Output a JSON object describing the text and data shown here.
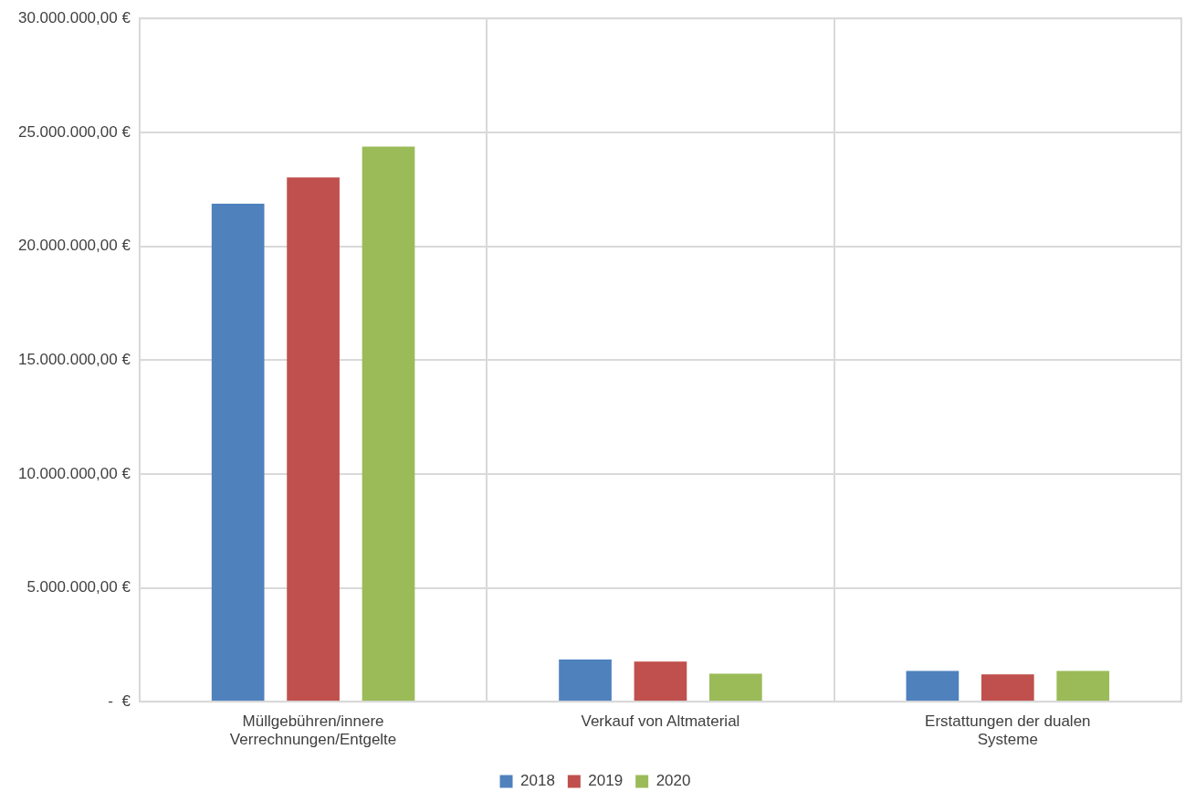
{
  "chart_data": {
    "type": "bar",
    "categories": [
      "Müllgebühren/innere Verrechnungen/Entgelte",
      "Verkauf von Altmaterial",
      "Erstattungen der dualen Systeme"
    ],
    "series": [
      {
        "name": "2018",
        "color": "#4f81bd",
        "values": [
          21870000,
          1850000,
          1350000
        ]
      },
      {
        "name": "2019",
        "color": "#c0504d",
        "values": [
          23020000,
          1760000,
          1200000
        ]
      },
      {
        "name": "2020",
        "color": "#9bbb59",
        "values": [
          24370000,
          1230000,
          1350000
        ]
      }
    ],
    "ylim": [
      0,
      30000000
    ],
    "yticks": [
      {
        "value": 0,
        "label": "-  €"
      },
      {
        "value": 5000000,
        "label": "5.000.000,00 €"
      },
      {
        "value": 10000000,
        "label": "10.000.000,00 €"
      },
      {
        "value": 15000000,
        "label": "15.000.000,00 €"
      },
      {
        "value": 20000000,
        "label": "20.000.000,00 €"
      },
      {
        "value": 25000000,
        "label": "25.000.000,00 €"
      },
      {
        "value": 30000000,
        "label": "30.000.000,00 €"
      }
    ],
    "grid": true,
    "legend": "bottom"
  }
}
